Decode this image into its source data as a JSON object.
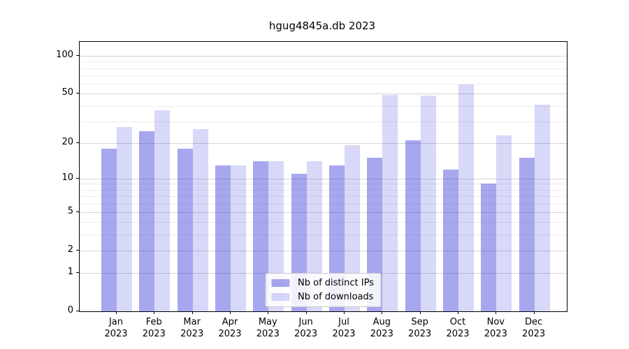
{
  "title": "hgug4845a.db 2023",
  "colors": {
    "bar_distinct_ips": "rgba(60,60,220,0.45)",
    "bar_downloads": "rgba(60,60,220,0.20)",
    "gridline_major": "#d4d4d4",
    "gridline_minor": "#ededed",
    "axis": "#000000"
  },
  "legend": {
    "items": [
      {
        "label": "Nb of distinct IPs",
        "color": "rgba(60,60,220,0.45)"
      },
      {
        "label": "Nb of downloads",
        "color": "rgba(60,60,220,0.20)"
      }
    ]
  },
  "chart_data": {
    "type": "bar",
    "title": "hgug4845a.db 2023",
    "scale": "log1p",
    "categories": [
      "Jan",
      "Feb",
      "Mar",
      "Apr",
      "May",
      "Jun",
      "Jul",
      "Aug",
      "Sep",
      "Oct",
      "Nov",
      "Dec"
    ],
    "category_year": "2023",
    "series": [
      {
        "name": "Nb of distinct IPs",
        "color": "rgba(60,60,220,0.45)",
        "values": [
          18,
          25,
          18,
          13,
          14,
          11,
          13,
          15,
          21,
          12,
          9,
          15
        ]
      },
      {
        "name": "Nb of downloads",
        "color": "rgba(60,60,220,0.20)",
        "values": [
          27,
          37,
          26,
          13,
          14,
          14,
          19,
          49,
          48,
          59,
          23,
          41
        ]
      }
    ],
    "yticks": [
      0,
      1,
      2,
      5,
      10,
      20,
      50,
      100
    ],
    "minor_gridlines": [
      3,
      4,
      6,
      7,
      8,
      9,
      30,
      40,
      60,
      70,
      80,
      90
    ],
    "ylim": [
      0,
      130
    ],
    "grid": true,
    "legend_position": "lower center",
    "xlabel": "",
    "ylabel": ""
  }
}
